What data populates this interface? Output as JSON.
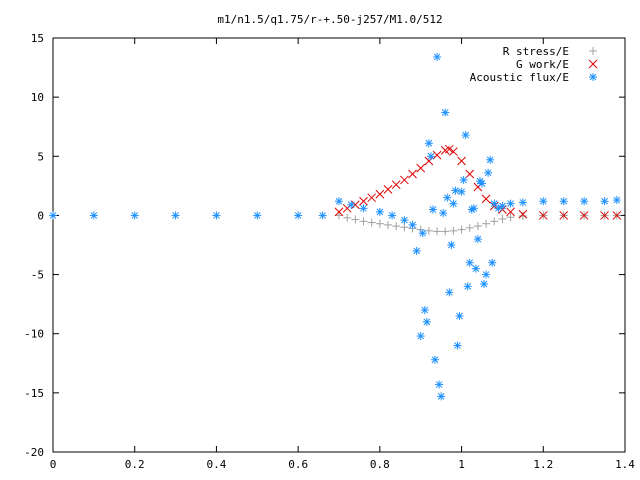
{
  "chart_data": {
    "type": "scatter",
    "title": "m1/n1.5/q1.75/r-+.50-j257/M1.0/512",
    "xlabel": "",
    "ylabel": "",
    "xlim": [
      0,
      1.4
    ],
    "ylim": [
      -20,
      15
    ],
    "xticks": [
      "0",
      "0.2",
      "0.4",
      "0.6",
      "0.8",
      "1",
      "1.2",
      "1.4"
    ],
    "yticks": [
      "15",
      "10",
      "5",
      "0",
      "-5",
      "-10",
      "-15",
      "-20"
    ],
    "grid": false,
    "legend_position": "top-right",
    "series": [
      {
        "name": "R stress/E",
        "marker": "+",
        "color": "#a0a0a0",
        "x": [
          0.7,
          0.72,
          0.74,
          0.76,
          0.78,
          0.8,
          0.82,
          0.84,
          0.86,
          0.88,
          0.9,
          0.92,
          0.94,
          0.96,
          0.98,
          1.0,
          1.02,
          1.04,
          1.06,
          1.08,
          1.1,
          1.12,
          1.15,
          1.2,
          1.25,
          1.3,
          1.35,
          1.38
        ],
        "y": [
          0.0,
          -0.2,
          -0.35,
          -0.5,
          -0.6,
          -0.7,
          -0.8,
          -0.9,
          -1.0,
          -1.1,
          -1.2,
          -1.3,
          -1.35,
          -1.35,
          -1.3,
          -1.2,
          -1.05,
          -0.9,
          -0.7,
          -0.5,
          -0.3,
          -0.15,
          -0.05,
          0.0,
          0.0,
          0.0,
          0.0,
          0.0
        ]
      },
      {
        "name": "G work/E",
        "marker": "x",
        "color": "#dd0000",
        "x": [
          0.7,
          0.72,
          0.74,
          0.76,
          0.78,
          0.8,
          0.82,
          0.84,
          0.86,
          0.88,
          0.9,
          0.92,
          0.94,
          0.96,
          0.97,
          0.98,
          1.0,
          1.02,
          1.04,
          1.06,
          1.08,
          1.1,
          1.12,
          1.15,
          1.2,
          1.25,
          1.3,
          1.35,
          1.38
        ],
        "y": [
          0.3,
          0.6,
          0.9,
          1.2,
          1.5,
          1.8,
          2.2,
          2.6,
          3.0,
          3.5,
          4.0,
          4.6,
          5.1,
          5.5,
          5.6,
          5.4,
          4.6,
          3.5,
          2.4,
          1.4,
          0.8,
          0.5,
          0.3,
          0.1,
          0.0,
          0.0,
          0.0,
          0.0,
          0.0
        ]
      },
      {
        "name": "Acoustic flux/E",
        "marker": "*",
        "color": "#1e90ff",
        "x": [
          0.0,
          0.1,
          0.2,
          0.3,
          0.4,
          0.5,
          0.6,
          0.66,
          0.7,
          0.73,
          0.76,
          0.8,
          0.83,
          0.86,
          0.88,
          0.89,
          0.9,
          0.91,
          0.92,
          0.93,
          0.94,
          0.95,
          0.96,
          0.97,
          0.98,
          0.99,
          1.0,
          1.01,
          1.02,
          1.03,
          1.04,
          1.05,
          1.06,
          1.07,
          1.08,
          1.09,
          1.1,
          1.12,
          1.15,
          1.2,
          1.25,
          1.3,
          1.35,
          1.38,
          0.905,
          0.915,
          0.925,
          0.935,
          0.945,
          0.955,
          0.965,
          0.975,
          0.985,
          0.995,
          1.005,
          1.015,
          1.025,
          1.035,
          1.045,
          1.055,
          1.065,
          1.075
        ],
        "y": [
          0.0,
          0.0,
          0.0,
          0.0,
          0.0,
          0.0,
          0.0,
          0.0,
          1.2,
          0.9,
          0.6,
          0.3,
          0.0,
          -0.4,
          -0.8,
          -3.0,
          -10.2,
          -8.0,
          6.1,
          0.5,
          13.4,
          -15.3,
          8.7,
          -6.5,
          1.0,
          -11.0,
          2.0,
          6.8,
          -4.0,
          0.6,
          -2.0,
          2.7,
          -5.0,
          4.7,
          1.0,
          0.6,
          0.8,
          1.0,
          1.1,
          1.2,
          1.2,
          1.2,
          1.2,
          1.3,
          -1.5,
          -9.0,
          5.0,
          -12.2,
          -14.3,
          0.2,
          1.5,
          -2.5,
          2.1,
          -8.5,
          3.0,
          -6.0,
          0.5,
          -4.5,
          2.9,
          -5.8,
          3.6,
          -4.0
        ]
      }
    ]
  }
}
